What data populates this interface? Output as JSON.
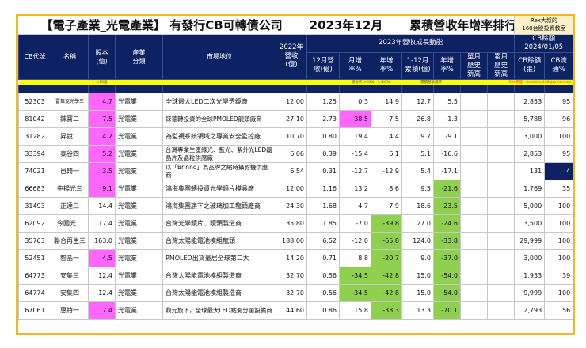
{
  "title": {
    "left": "【電子產業_光電產業】 有發行CB可轉債公司",
    "middle": "2023年12月",
    "right": "累積營收年增率排行",
    "badge_line1": "Rex大叔的",
    "badge_line2": "168台股投資教室"
  },
  "header": {
    "cb_code": "CB代號",
    "name": "名稱",
    "capital": "股本(億)",
    "industry": "產業分類",
    "market_position": "市場地位",
    "rev2022": "2022年營收(億)",
    "group_2023": "2023年營收成長動能",
    "group_cb": "CB餘額 2024/01/05",
    "dec_rev": "12月營收(億)",
    "mom": "月增率%",
    "yoy": "年增率%",
    "ytd": "1-12月累積(億)",
    "ytd_yoy": "年增率%",
    "month_high": "單月歷史新高",
    "cum_high": "累月歷史新高",
    "cb_balance": "CB餘額(張)",
    "cb_float": "CB流通%"
  },
  "band": {
    "capital_note": "<10億",
    "growth_note": "增長率 >20%；<-20%",
    "sort_note": "累積營收排序",
    "contact": "Rex整理：rexdashu168@gmail.com"
  },
  "colors": {
    "navy": "#0d2263",
    "frame": "#f2b820",
    "band": "#ffff00",
    "highlight_pink": "#ff66ff",
    "highlight_green": "#8fd14f"
  },
  "rows": [
    {
      "code": "52303",
      "name": "雷笛克光學三",
      "capital": "4.7",
      "industry": "光電業",
      "position": "全球最大LED二次光學透鏡廠",
      "rev2022": "12.00",
      "dec": "1.25",
      "mom": "0.3",
      "yoy": "14.9",
      "ytd": "12.7",
      "ytd_yoy": "5.5",
      "mhigh": "",
      "chigh": "",
      "cb": "2,853",
      "float": "95"
    },
    {
      "code": "81042",
      "name": "錸寶二",
      "capital": "7.5",
      "industry": "光電業",
      "position": "錸德轉投資的全球PMOLED龍頭廠商",
      "rev2022": "27.10",
      "dec": "2.73",
      "mom": "38.5",
      "yoy": "7.5",
      "ytd": "26.8",
      "ytd_yoy": "-1.3",
      "mhigh": "",
      "chigh": "",
      "cb": "5,788",
      "float": "96"
    },
    {
      "code": "31282",
      "name": "昇銳二",
      "capital": "4.2",
      "industry": "光電業",
      "position": "為監視系統領域之專業安全監控廠",
      "rev2022": "10.70",
      "dec": "0.80",
      "mom": "19.4",
      "yoy": "4.4",
      "ytd": "9.7",
      "ytd_yoy": "-9.1",
      "mhigh": "",
      "chigh": "",
      "cb": "3,000",
      "float": "100"
    },
    {
      "code": "33394",
      "name": "泰谷四",
      "capital": "5.2",
      "industry": "光電業",
      "position": "台灣專業生產綠光、藍光、紫外光LED磊晶片及晶粒供應廠",
      "rev2022": "6.06",
      "dec": "0.39",
      "mom": "-15.4",
      "yoy": "6.1",
      "ytd": "5.1",
      "ytd_yoy": "-16.6",
      "mhigh": "",
      "chigh": "",
      "cb": "2,853",
      "float": "95"
    },
    {
      "code": "74021",
      "name": "邑錡一",
      "capital": "3.5",
      "industry": "光電業",
      "position": "以「Brinno」為品牌之縮時攝影機供應商",
      "rev2022": "6.54",
      "dec": "0.31",
      "mom": "-12.7",
      "yoy": "-12.9",
      "ytd": "5.4",
      "ytd_yoy": "-17.1",
      "mhigh": "",
      "chigh": "",
      "cb": "131",
      "float": "4"
    },
    {
      "code": "66683",
      "name": "中揚光三",
      "capital": "9.1",
      "industry": "光電業",
      "position": "鴻海集團轉投資光學鏡片模具廠",
      "rev2022": "12.00",
      "dec": "1.16",
      "mom": "13.2",
      "yoy": "8.6",
      "ytd": "9.5",
      "ytd_yoy": "-21.6",
      "mhigh": "",
      "chigh": "",
      "cb": "1,769",
      "float": "35"
    },
    {
      "code": "31493",
      "name": "正達三",
      "capital": "14.4",
      "industry": "光電業",
      "position": "鴻海集團旗下之玻璃加工龍頭廠商",
      "rev2022": "24.30",
      "dec": "1.68",
      "mom": "4.7",
      "yoy": "7.9",
      "ytd": "18.6",
      "ytd_yoy": "-23.5",
      "mhigh": "",
      "chigh": "",
      "cb": "5,000",
      "float": "100"
    },
    {
      "code": "62092",
      "name": "今國光二",
      "capital": "17.4",
      "industry": "光電業",
      "position": "台灣光學鏡片、鏡頭製造商",
      "rev2022": "35.80",
      "dec": "1.85",
      "mom": "-7.0",
      "yoy": "-39.8",
      "ytd": "27.0",
      "ytd_yoy": "-24.6",
      "mhigh": "",
      "chigh": "",
      "cb": "3,500",
      "float": "100"
    },
    {
      "code": "35763",
      "name": "聯合再生三",
      "capital": "163.0",
      "industry": "光電業",
      "position": "台灣太陽能電池模組龍頭",
      "rev2022": "188.00",
      "dec": "6.52",
      "mom": "-12.0",
      "yoy": "-65.8",
      "ytd": "124.0",
      "ytd_yoy": "-33.8",
      "mhigh": "",
      "chigh": "",
      "cb": "29,999",
      "float": "100"
    },
    {
      "code": "52451",
      "name": "智晶一",
      "capital": "4.5",
      "industry": "光電業",
      "position": "PMOLED出貨量居全球第二大",
      "rev2022": "14.20",
      "dec": "0.71",
      "mom": "8.8",
      "yoy": "-20.7",
      "ytd": "9.0",
      "ytd_yoy": "-37.0",
      "mhigh": "",
      "chigh": "",
      "cb": "3,000",
      "float": "100"
    },
    {
      "code": "64773",
      "name": "安集三",
      "capital": "12.4",
      "industry": "光電業",
      "position": "台灣太陽能電池模組製造商",
      "rev2022": "32.70",
      "dec": "0.56",
      "mom": "-34.5",
      "yoy": "-42.8",
      "ytd": "15.0",
      "ytd_yoy": "-54.0",
      "mhigh": "",
      "chigh": "",
      "cb": "1,933",
      "float": "39"
    },
    {
      "code": "64774",
      "name": "安集四",
      "capital": "12.4",
      "industry": "光電業",
      "position": "台灣太陽能電池模組製造商",
      "rev2022": "32.70",
      "dec": "0.56",
      "mom": "-34.5",
      "yoy": "-42.8",
      "ytd": "15.0",
      "ytd_yoy": "-54.0",
      "mhigh": "",
      "chigh": "",
      "cb": "9,999",
      "float": "100"
    },
    {
      "code": "67061",
      "name": "惠特一",
      "capital": "7.4",
      "industry": "光電業",
      "position": "鼎元旗下，全球最大LED點測分選設備商",
      "rev2022": "44.60",
      "dec": "0.86",
      "mom": "15.8",
      "yoy": "-33.3",
      "ytd": "13.3",
      "ytd_yoy": "-70.1",
      "mhigh": "",
      "chigh": "",
      "cb": "2,793",
      "float": "56"
    }
  ]
}
